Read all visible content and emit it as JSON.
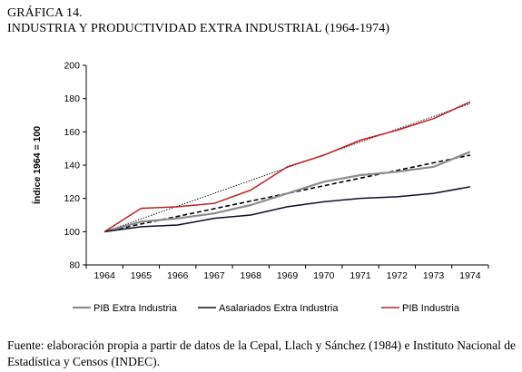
{
  "figure": {
    "label": "GRÁFICA 14.",
    "title": "INDUSTRIA Y PRODUCTIVIDAD EXTRA INDUSTRIAL (1964-1974)",
    "source": "Fuente: elaboración propia a partir de datos de la Cepal, Llach y Sánchez (1984) e Instituto Nacional de Estadística y Censos (INDEC)."
  },
  "chart_data": {
    "type": "line",
    "title": "",
    "xlabel": "",
    "ylabel": "Índice 1964 = 100",
    "x": [
      "1964",
      "1965",
      "1966",
      "1967",
      "1968",
      "1969",
      "1970",
      "1971",
      "1972",
      "1973",
      "1974"
    ],
    "ylim": [
      80,
      200
    ],
    "yticks": [
      80,
      100,
      120,
      140,
      160,
      180,
      200
    ],
    "grid": false,
    "legend": "bottom",
    "series": [
      {
        "name": "PIB Extra Industria",
        "values": [
          100,
          106,
          108,
          111,
          116,
          123,
          130,
          134,
          136,
          139,
          148
        ],
        "color": "#8c8c8c",
        "trend": {
          "from": 100,
          "to": 146,
          "color": "#000000",
          "dash": "dashed"
        }
      },
      {
        "name": "Asalariados Extra Industria",
        "values": [
          100,
          103,
          104,
          108,
          110,
          115,
          118,
          120,
          121,
          123,
          127
        ],
        "color": "#0d0d2b"
      },
      {
        "name": "PIB Industria",
        "values": [
          100,
          114,
          115,
          117,
          125,
          139,
          146,
          155,
          161,
          168,
          178
        ],
        "color": "#c0201e",
        "trend": {
          "from": 100,
          "to": 177,
          "color": "#000000",
          "dash": "dotted"
        }
      }
    ]
  }
}
